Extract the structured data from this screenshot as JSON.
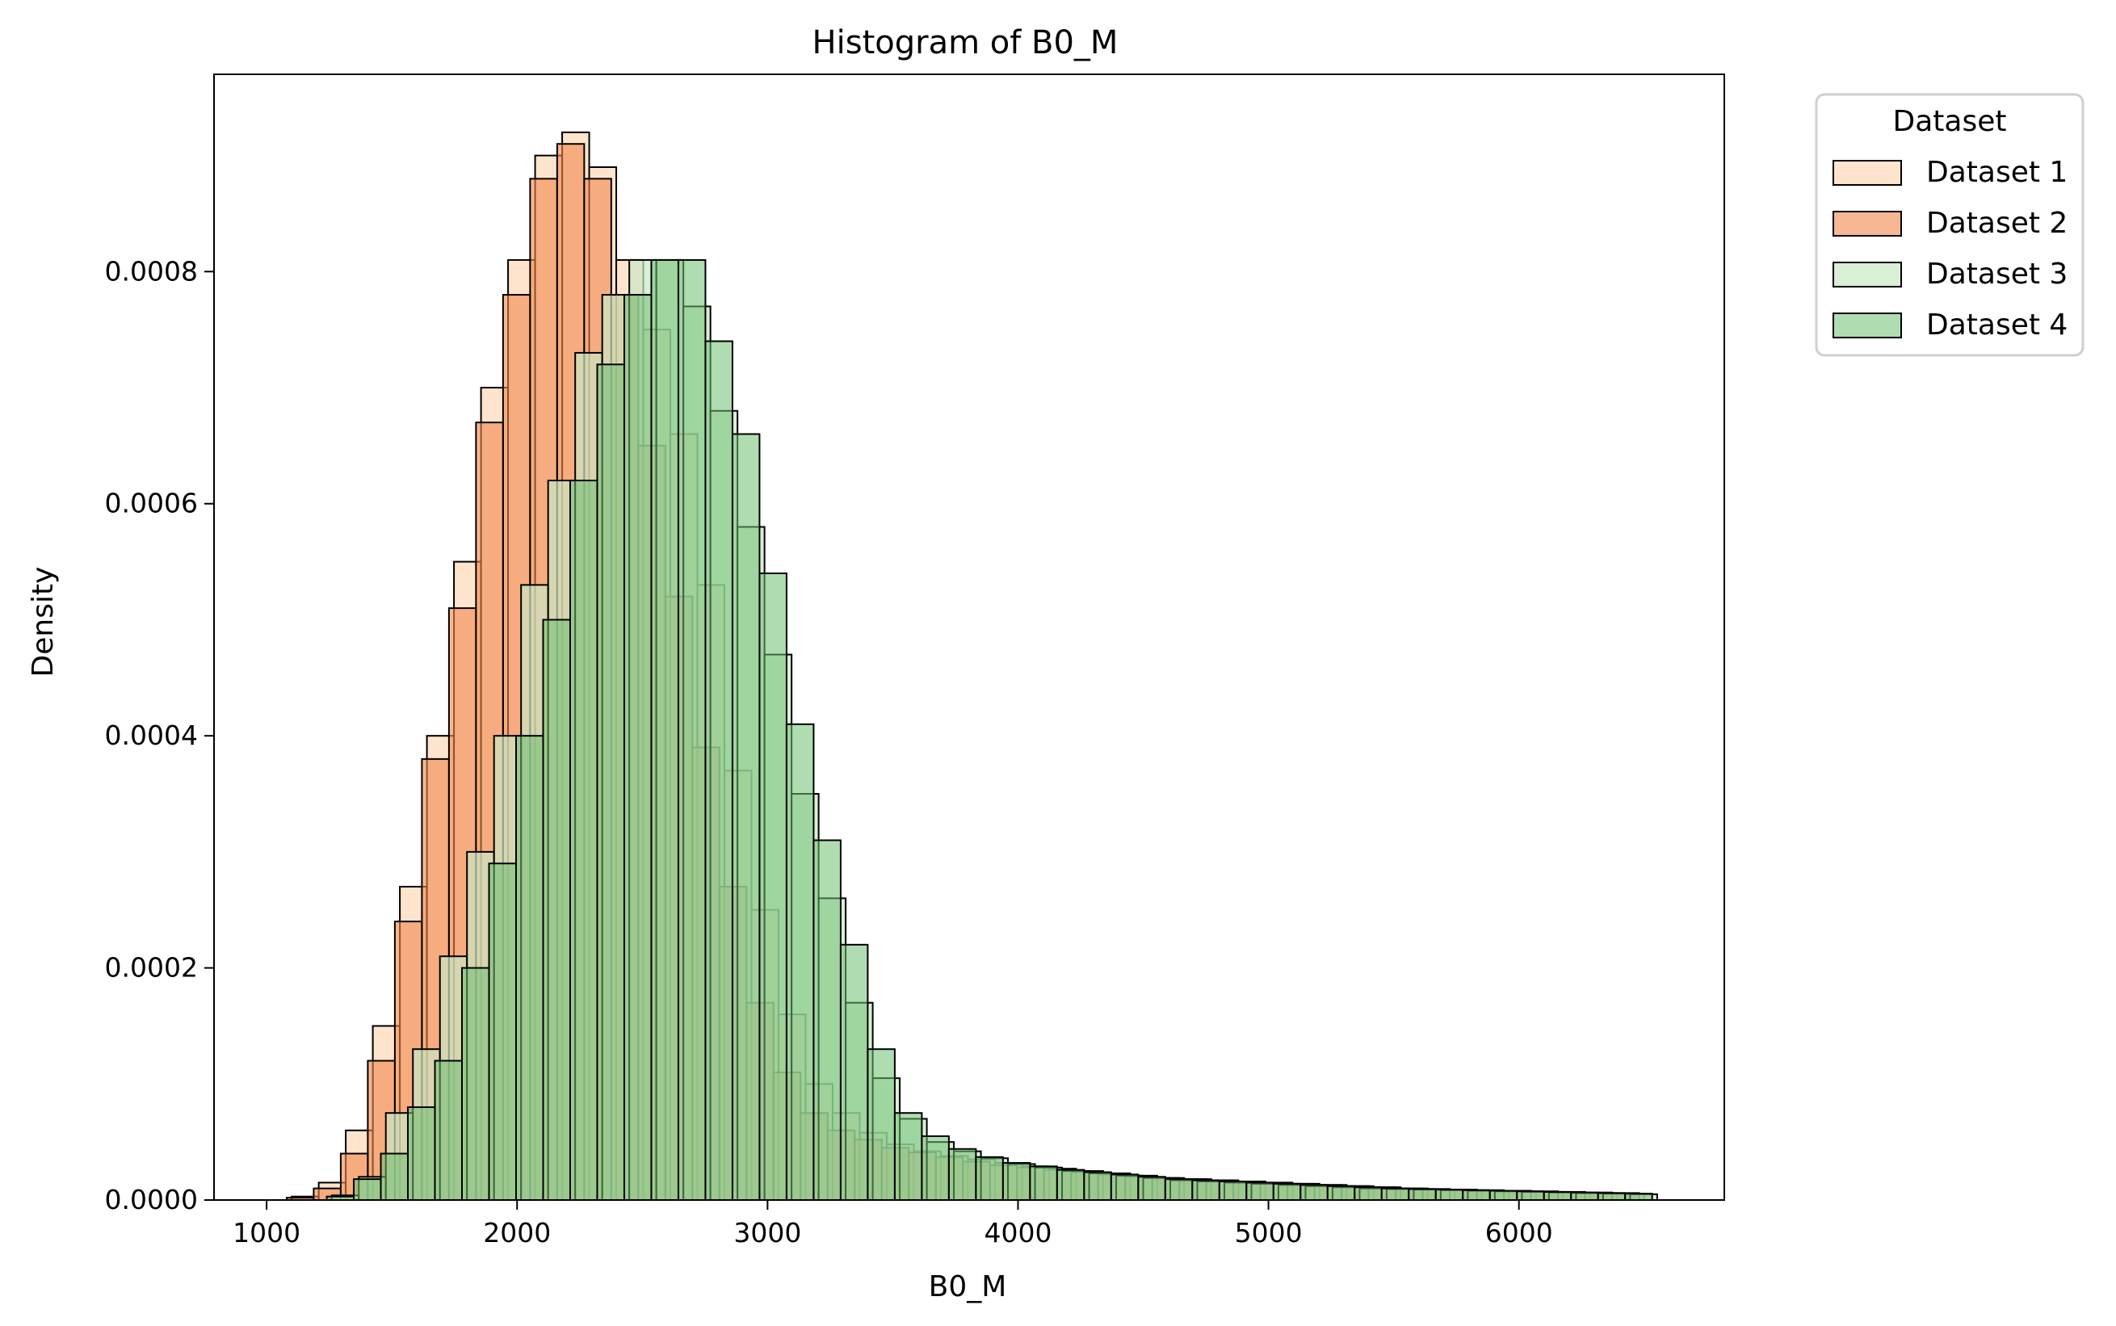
{
  "chart_data": {
    "type": "bar",
    "title": "Histogram of B0_M",
    "xlabel": "B0_M",
    "ylabel": "Density",
    "xlim": [
      790,
      6820
    ],
    "ylim": [
      0,
      0.00097
    ],
    "xticks": [
      1000,
      2000,
      3000,
      4000,
      5000,
      6000
    ],
    "yticks": [
      0.0,
      0.0002,
      0.0004,
      0.0006,
      0.0008
    ],
    "ytick_labels": [
      "0.0000",
      "0.0002",
      "0.0004",
      "0.0006",
      "0.0008"
    ],
    "grid": false,
    "legend": {
      "title": "Dataset",
      "placement": "outside-top-right"
    },
    "series": [
      {
        "name": "Dataset 1",
        "color": "#fdd9b8",
        "opacity": 0.7,
        "bin_width": 108,
        "x": [
          1100,
          1208,
          1316,
          1424,
          1532,
          1640,
          1748,
          1856,
          1964,
          2072,
          2180,
          2288,
          2396,
          2504,
          2612,
          2720,
          2828,
          2936,
          3044,
          3152,
          3260,
          3368,
          3476,
          3584,
          3692,
          3800,
          3908,
          4016,
          4124,
          4232,
          4340,
          4448,
          4556,
          4664,
          4772,
          4880,
          4988,
          5096,
          5204,
          5312,
          5420,
          5528,
          5636,
          5744,
          5852,
          5960,
          6068,
          6176,
          6284,
          6392
        ],
        "values": [
          3e-06,
          1.5e-05,
          6e-05,
          0.00015,
          0.00027,
          0.0004,
          0.00055,
          0.0007,
          0.00081,
          0.0009,
          0.00092,
          0.00089,
          0.00081,
          0.00075,
          0.00066,
          0.00053,
          0.00037,
          0.00025,
          0.00016,
          0.0001,
          7.5e-05,
          5.8e-05,
          4.8e-05,
          4.2e-05,
          3.8e-05,
          3.5e-05,
          3.2e-05,
          2.9e-05,
          2.7e-05,
          2.5e-05,
          2.3e-05,
          2.1e-05,
          1.9e-05,
          1.8e-05,
          1.7e-05,
          1.6e-05,
          1.5e-05,
          1.4e-05,
          1.3e-05,
          1.2e-05,
          1.1e-05,
          1e-05,
          9e-06,
          8.5e-06,
          8e-06,
          7.5e-06,
          7e-06,
          6.5e-06,
          6e-06,
          5.5e-06
        ]
      },
      {
        "name": "Dataset 2",
        "color": "#f2874b",
        "opacity": 0.6,
        "bin_width": 108,
        "x": [
          1080,
          1188,
          1296,
          1404,
          1512,
          1620,
          1728,
          1836,
          1944,
          2052,
          2160,
          2268,
          2376,
          2484,
          2592,
          2700,
          2808,
          2916,
          3024,
          3132,
          3240,
          3348,
          3456,
          3564,
          3672,
          3780,
          3888,
          3996,
          4104,
          4212,
          4320,
          4428,
          4536,
          4644,
          4752,
          4860,
          4968,
          5076,
          5184,
          5292,
          5400,
          5508,
          5616,
          5724,
          5832,
          5940,
          6048,
          6156,
          6264,
          6372
        ],
        "values": [
          2e-06,
          1e-05,
          4e-05,
          0.00012,
          0.00024,
          0.00038,
          0.00051,
          0.00067,
          0.00078,
          0.00088,
          0.00091,
          0.00088,
          0.00078,
          0.00065,
          0.00052,
          0.00039,
          0.00027,
          0.00017,
          0.00011,
          7.5e-05,
          6e-05,
          5.2e-05,
          4.5e-05,
          4.1e-05,
          3.7e-05,
          3.3e-05,
          3e-05,
          2.8e-05,
          2.6e-05,
          2.4e-05,
          2.2e-05,
          2e-05,
          1.9e-05,
          1.8e-05,
          1.7e-05,
          1.6e-05,
          1.5e-05,
          1.4e-05,
          1.3e-05,
          1.2e-05,
          1.1e-05,
          1e-05,
          9.5e-06,
          9e-06,
          8.5e-06,
          8e-06,
          7.5e-06,
          7e-06,
          6.5e-06,
          6e-06
        ]
      },
      {
        "name": "Dataset 3",
        "color": "#c9e8c5",
        "opacity": 0.7,
        "bin_width": 108,
        "x": [
          1260,
          1368,
          1476,
          1584,
          1692,
          1800,
          1908,
          2016,
          2124,
          2232,
          2340,
          2448,
          2556,
          2664,
          2772,
          2880,
          2988,
          3096,
          3204,
          3312,
          3420,
          3528,
          3636,
          3744,
          3852,
          3960,
          4068,
          4176,
          4284,
          4392,
          4500,
          4608,
          4716,
          4824,
          4932,
          5040,
          5148,
          5256,
          5364,
          5472,
          5580,
          5688,
          5796,
          5904,
          6012,
          6120,
          6228,
          6336,
          6444
        ],
        "values": [
          4e-06,
          2e-05,
          7.5e-05,
          0.00013,
          0.00021,
          0.0003,
          0.0004,
          0.00053,
          0.00062,
          0.00073,
          0.00078,
          0.00081,
          0.00081,
          0.00077,
          0.00068,
          0.00058,
          0.00047,
          0.00035,
          0.00026,
          0.00017,
          0.000105,
          7e-05,
          5e-05,
          4.2e-05,
          3.6e-05,
          3.1e-05,
          2.8e-05,
          2.5e-05,
          2.3e-05,
          2.1e-05,
          1.9e-05,
          1.7e-05,
          1.6e-05,
          1.5e-05,
          1.4e-05,
          1.3e-05,
          1.2e-05,
          1.1e-05,
          1e-05,
          9.5e-06,
          9e-06,
          8.5e-06,
          8e-06,
          7.5e-06,
          7e-06,
          6.5e-06,
          6e-06,
          5.5e-06,
          5e-06
        ]
      },
      {
        "name": "Dataset 4",
        "color": "#6fbf73",
        "opacity": 0.55,
        "bin_width": 108,
        "x": [
          1240,
          1348,
          1456,
          1564,
          1672,
          1780,
          1888,
          1996,
          2104,
          2212,
          2320,
          2428,
          2536,
          2644,
          2752,
          2860,
          2968,
          3076,
          3184,
          3292,
          3400,
          3508,
          3616,
          3724,
          3832,
          3940,
          4048,
          4156,
          4264,
          4372,
          4480,
          4588,
          4696,
          4804,
          4912,
          5020,
          5128,
          5236,
          5344,
          5452,
          5560,
          5668,
          5776,
          5884,
          5992,
          6100,
          6208,
          6316,
          6424
        ],
        "values": [
          3e-06,
          1.8e-05,
          4e-05,
          8e-05,
          0.00012,
          0.0002,
          0.00029,
          0.0004,
          0.0005,
          0.00062,
          0.00072,
          0.00078,
          0.00081,
          0.00081,
          0.00074,
          0.00066,
          0.00054,
          0.00041,
          0.00031,
          0.00022,
          0.00013,
          7.5e-05,
          5.5e-05,
          4.4e-05,
          3.7e-05,
          3.2e-05,
          2.9e-05,
          2.6e-05,
          2.4e-05,
          2.2e-05,
          2e-05,
          1.8e-05,
          1.7e-05,
          1.6e-05,
          1.5e-05,
          1.4e-05,
          1.3e-05,
          1.2e-05,
          1.1e-05,
          1e-05,
          9.5e-06,
          9e-06,
          8.5e-06,
          8e-06,
          7.5e-06,
          7e-06,
          6.5e-06,
          6e-06,
          5.5e-06
        ]
      }
    ]
  }
}
